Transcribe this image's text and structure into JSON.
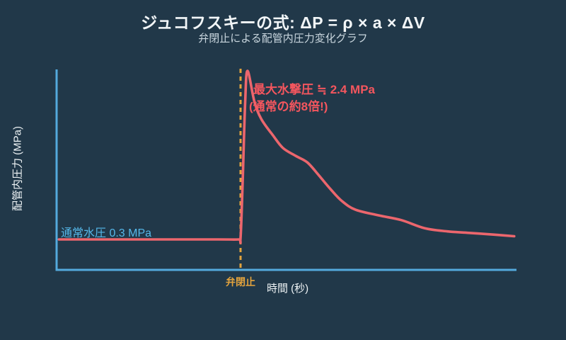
{
  "header": {
    "title": "ジュコフスキーの式: ΔP = ρ × a × ΔV",
    "subtitle": "弁閉止による配管内圧力変化グラフ"
  },
  "colors": {
    "background": "#213849",
    "axis": "#54aadd",
    "curve": "#ec666d",
    "dashed_line": "#e3a33d",
    "annotation_red": "#f4565e",
    "normal_pressure_blue": "#55b8ea",
    "title_text": "#f2f6f8",
    "subtitle_text": "#c9d6de"
  },
  "chart_data": {
    "type": "line",
    "title": "弁閉止による配管内圧力変化グラフ",
    "xlabel": "時間 (秒)",
    "ylabel": "配管内圧力 (MPa)",
    "xlim": [
      0,
      10
    ],
    "ylim": [
      0,
      2.6
    ],
    "grid": false,
    "legend": false,
    "valve_close_time_s": 4.0,
    "normal_pressure_mpa": 0.3,
    "max_water_hammer_pressure_mpa": 2.4,
    "series": [
      {
        "name": "配管内圧力",
        "color": "#ec666d",
        "points_t_s_vs_mpa": [
          [
            0.05,
            0.3
          ],
          [
            2.0,
            0.3
          ],
          [
            3.5,
            0.3
          ],
          [
            3.95,
            0.3
          ],
          [
            4.0,
            0.32
          ],
          [
            4.05,
            1.1
          ],
          [
            4.1,
            2.0
          ],
          [
            4.15,
            2.4
          ],
          [
            4.3,
            2.02
          ],
          [
            4.45,
            1.8
          ],
          [
            4.7,
            1.6
          ],
          [
            4.92,
            1.44
          ],
          [
            5.2,
            1.34
          ],
          [
            5.45,
            1.26
          ],
          [
            5.7,
            1.1
          ],
          [
            5.95,
            0.93
          ],
          [
            6.2,
            0.78
          ],
          [
            6.5,
            0.67
          ],
          [
            7.0,
            0.6
          ],
          [
            7.5,
            0.54
          ],
          [
            8.0,
            0.44
          ],
          [
            8.5,
            0.4
          ],
          [
            9.0,
            0.38
          ],
          [
            9.5,
            0.36
          ],
          [
            9.95,
            0.34
          ]
        ]
      }
    ],
    "annotations": [
      {
        "id": "max-pressure",
        "text": "最大水撃圧 ≒ 2.4 MPa",
        "color": "#f4565e"
      },
      {
        "id": "max-pressure-note",
        "text": "(通常の約8倍!)",
        "color": "#f4565e"
      },
      {
        "id": "normal-pressure",
        "text": "通常水圧 0.3 MPa",
        "color": "#55b8ea"
      },
      {
        "id": "valve-close",
        "text": "弁閉止",
        "color": "#e3a33d"
      }
    ]
  }
}
